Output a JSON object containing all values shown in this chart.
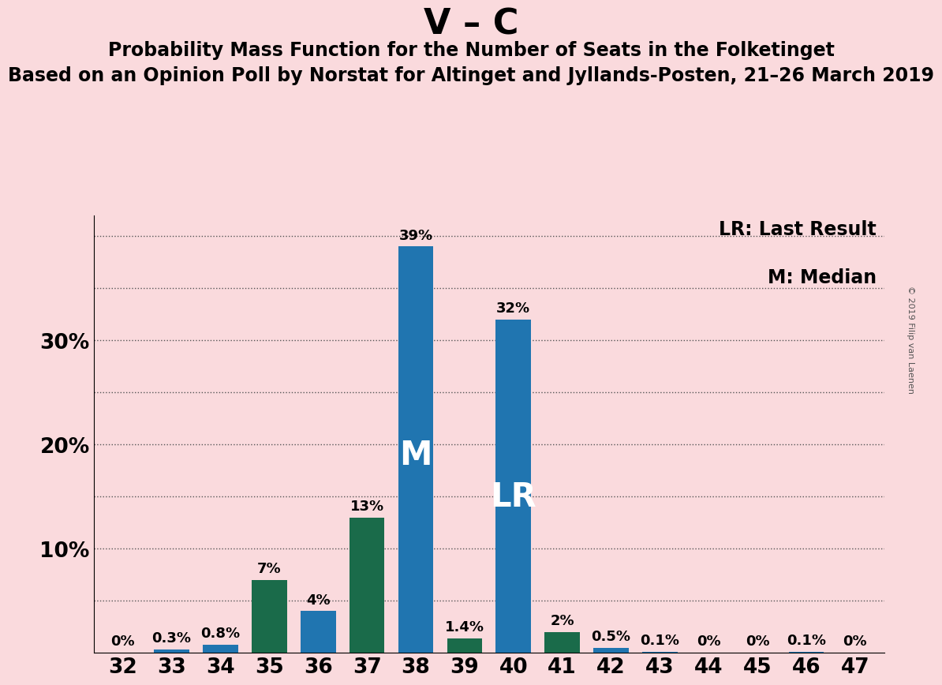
{
  "title": "V – C",
  "subtitle1": "Probability Mass Function for the Number of Seats in the Folketinget",
  "subtitle2": "Based on an Opinion Poll by Norstat for Altinget and Jyllands-Posten, 21–26 March 2019",
  "copyright": "© 2019 Filip van Laenen",
  "seats": [
    32,
    33,
    34,
    35,
    36,
    37,
    38,
    39,
    40,
    41,
    42,
    43,
    44,
    45,
    46,
    47
  ],
  "blue_values": [
    0.0,
    0.3,
    0.8,
    0.0,
    4.0,
    0.0,
    39.0,
    0.0,
    32.0,
    0.0,
    0.5,
    0.1,
    0.0,
    0.0,
    0.1,
    0.0
  ],
  "green_values": [
    0.0,
    0.0,
    0.0,
    7.0,
    0.0,
    13.0,
    0.0,
    1.4,
    0.0,
    2.0,
    0.0,
    0.0,
    0.0,
    0.0,
    0.0,
    0.0
  ],
  "bar_labels": [
    "0%",
    "0.3%",
    "0.8%",
    "7%",
    "4%",
    "13%",
    "39%",
    "1.4%",
    "32%",
    "2%",
    "0.5%",
    "0.1%",
    "0%",
    "0%",
    "0.1%",
    "0%"
  ],
  "blue_color": "#2075b0",
  "green_color": "#1a6b4a",
  "background_color": "#fadadd",
  "ylim_max": 42,
  "yticks": [
    10,
    20,
    30
  ],
  "grid_lines": [
    5,
    10,
    15,
    20,
    25,
    30,
    35,
    40
  ],
  "median_seat": 38,
  "last_result_seat": 40,
  "legend_lr": "LR: Last Result",
  "legend_m": "M: Median",
  "bar_label_fontsize": 13,
  "axis_tick_fontsize": 19,
  "legend_fontsize": 17,
  "title_fontsize": 32,
  "subtitle1_fontsize": 17,
  "subtitle2_fontsize": 17
}
